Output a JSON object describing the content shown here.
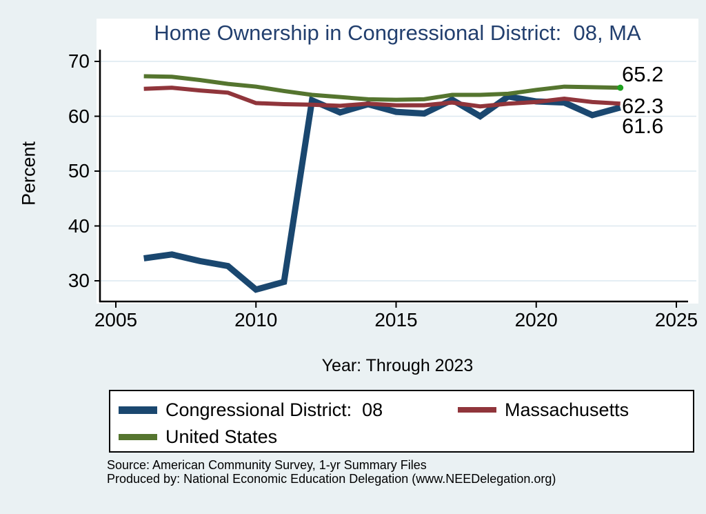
{
  "title": "Home Ownership in Congressional District:  08, MA",
  "colors": {
    "background": "#eaf1f3",
    "plot_background": "#ffffff",
    "title_text": "#223f6e",
    "grid": "#dce8f0",
    "axis": "#000000",
    "cd08_line": "#1a476f",
    "massachusetts_line": "#90353b",
    "united_states_line": "#55752f",
    "end_marker": "#1fa11f"
  },
  "y_axis": {
    "label": "Percent",
    "ticks": [
      70,
      60,
      50,
      40,
      30
    ]
  },
  "x_axis": {
    "label": "Year: Through 2023",
    "ticks": [
      2005,
      2010,
      2015,
      2020,
      2025
    ]
  },
  "end_labels": [
    "65.2",
    "62.3",
    "61.6"
  ],
  "legend": {
    "items": [
      {
        "label": "Congressional District:  08",
        "color": "#1a476f"
      },
      {
        "label": "Massachusetts",
        "color": "#90353b"
      },
      {
        "label": "United States",
        "color": "#55752f"
      }
    ]
  },
  "source": {
    "line1": "Source: American Community Survey, 1-yr Summary Files",
    "line2": "Produced by: National Economic Education Delegation (www.NEEDelegation.org)"
  },
  "chart_data": {
    "type": "line",
    "title": "Home Ownership in Congressional District:  08, MA",
    "xlabel": "Year: Through 2023",
    "ylabel": "Percent",
    "x": [
      2006,
      2007,
      2008,
      2009,
      2010,
      2011,
      2012,
      2013,
      2014,
      2015,
      2016,
      2017,
      2018,
      2019,
      2020,
      2021,
      2022,
      2023
    ],
    "series": [
      {
        "name": "Congressional District:  08",
        "color": "#1a476f",
        "end_label": "61.6",
        "values": [
          34.1,
          34.8,
          33.6,
          32.7,
          28.4,
          29.8,
          62.9,
          60.7,
          62.2,
          60.8,
          60.5,
          63.0,
          60.0,
          63.6,
          62.7,
          62.5,
          60.2,
          61.6
        ]
      },
      {
        "name": "Massachusetts",
        "color": "#90353b",
        "end_label": "62.3",
        "values": [
          65.0,
          65.2,
          64.7,
          64.3,
          62.4,
          62.2,
          62.1,
          61.9,
          62.3,
          62.0,
          62.0,
          62.5,
          61.8,
          62.3,
          62.6,
          63.2,
          62.6,
          62.3
        ]
      },
      {
        "name": "United States",
        "color": "#55752f",
        "end_label": "65.2",
        "end_marker": true,
        "marker_color": "#1fa11f",
        "values": [
          67.3,
          67.2,
          66.6,
          65.9,
          65.4,
          64.6,
          63.9,
          63.5,
          63.1,
          63.0,
          63.1,
          63.9,
          63.9,
          64.1,
          64.8,
          65.4,
          65.3,
          65.2
        ]
      }
    ],
    "x_ticks": [
      2005,
      2010,
      2015,
      2020,
      2025
    ],
    "y_ticks": [
      70,
      60,
      50,
      40,
      30
    ],
    "xlim": [
      2004.4,
      2025.4
    ],
    "ylim": [
      26,
      72
    ],
    "grid": true,
    "legend_position": "bottom"
  }
}
